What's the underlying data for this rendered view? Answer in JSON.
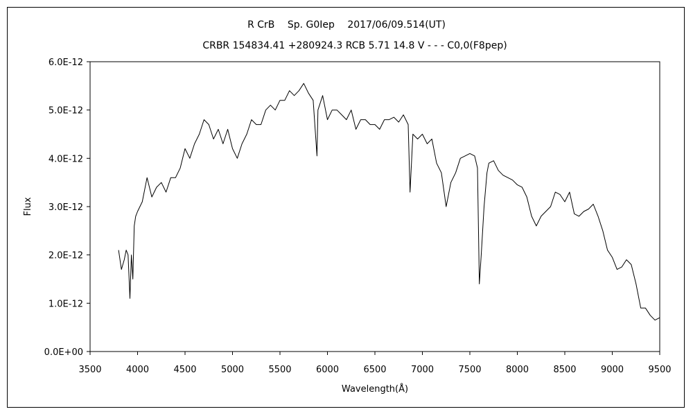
{
  "chart_data": {
    "type": "line",
    "title": "R CrB　 Sp. G0Iep　 2017/06/09.514(UT)",
    "subtitle": "CRBR 154834.41 +280924.3 RCB 5.71 14.8 V - - - C0,0(F8pep)",
    "xlabel": "Wavelength(Å)",
    "ylabel": "Flux",
    "xlim": [
      3500,
      9500
    ],
    "ylim": [
      0,
      6e-12
    ],
    "x_ticks": [
      3500,
      4000,
      4500,
      5000,
      5500,
      6000,
      6500,
      7000,
      7500,
      8000,
      8500,
      9000,
      9500
    ],
    "y_ticks": [
      "0.0E+00",
      "1.0E-12",
      "2.0E-12",
      "3.0E-12",
      "4.0E-12",
      "5.0E-12",
      "6.0E-12"
    ],
    "grid": false,
    "legend": "none",
    "line_color": "#000000",
    "series": [
      {
        "name": "",
        "x": [
          3800,
          3830,
          3860,
          3880,
          3900,
          3920,
          3935,
          3950,
          3965,
          3980,
          4000,
          4050,
          4100,
          4150,
          4200,
          4250,
          4300,
          4350,
          4400,
          4450,
          4500,
          4550,
          4600,
          4650,
          4700,
          4750,
          4800,
          4850,
          4900,
          4950,
          5000,
          5050,
          5100,
          5150,
          5200,
          5250,
          5300,
          5350,
          5400,
          5450,
          5500,
          5550,
          5600,
          5650,
          5700,
          5750,
          5800,
          5850,
          5890,
          5900,
          5950,
          6000,
          6050,
          6100,
          6150,
          6200,
          6250,
          6300,
          6350,
          6400,
          6450,
          6500,
          6550,
          6600,
          6650,
          6700,
          6750,
          6800,
          6850,
          6870,
          6900,
          6950,
          7000,
          7050,
          7100,
          7150,
          7200,
          7250,
          7300,
          7350,
          7400,
          7450,
          7500,
          7550,
          7580,
          7600,
          7620,
          7650,
          7680,
          7700,
          7750,
          7800,
          7850,
          7900,
          7950,
          8000,
          8050,
          8100,
          8150,
          8200,
          8250,
          8300,
          8350,
          8400,
          8450,
          8500,
          8550,
          8600,
          8650,
          8700,
          8750,
          8800,
          8850,
          8900,
          8950,
          9000,
          9050,
          9100,
          9150,
          9200,
          9250,
          9300,
          9350,
          9400,
          9450,
          9500
        ],
        "y": [
          2.1e-12,
          1.7e-12,
          1.9e-12,
          2.1e-12,
          2e-12,
          1.1e-12,
          2e-12,
          1.5e-12,
          2.6e-12,
          2.8e-12,
          2.9e-12,
          3.1e-12,
          3.6e-12,
          3.2e-12,
          3.4e-12,
          3.5e-12,
          3.3e-12,
          3.6e-12,
          3.6e-12,
          3.8e-12,
          4.2e-12,
          4e-12,
          4.3e-12,
          4.5e-12,
          4.8e-12,
          4.7e-12,
          4.4e-12,
          4.6e-12,
          4.3e-12,
          4.6e-12,
          4.2e-12,
          4e-12,
          4.3e-12,
          4.5e-12,
          4.8e-12,
          4.7e-12,
          4.7e-12,
          5e-12,
          5.1e-12,
          5e-12,
          5.2e-12,
          5.2e-12,
          5.4e-12,
          5.3e-12,
          5.4e-12,
          5.55e-12,
          5.35e-12,
          5.2e-12,
          4.05e-12,
          5e-12,
          5.3e-12,
          4.8e-12,
          5e-12,
          5e-12,
          4.9e-12,
          4.8e-12,
          5e-12,
          4.6e-12,
          4.8e-12,
          4.8e-12,
          4.7e-12,
          4.7e-12,
          4.6e-12,
          4.8e-12,
          4.8e-12,
          4.85e-12,
          4.75e-12,
          4.9e-12,
          4.7e-12,
          3.3e-12,
          4.5e-12,
          4.4e-12,
          4.5e-12,
          4.3e-12,
          4.4e-12,
          3.9e-12,
          3.7e-12,
          3e-12,
          3.5e-12,
          3.7e-12,
          4e-12,
          4.05e-12,
          4.1e-12,
          4.05e-12,
          3.8e-12,
          1.4e-12,
          2e-12,
          3e-12,
          3.7e-12,
          3.9e-12,
          3.95e-12,
          3.75e-12,
          3.65e-12,
          3.6e-12,
          3.55e-12,
          3.45e-12,
          3.4e-12,
          3.2e-12,
          2.8e-12,
          2.6e-12,
          2.8e-12,
          2.9e-12,
          3e-12,
          3.3e-12,
          3.25e-12,
          3.1e-12,
          3.3e-12,
          2.85e-12,
          2.8e-12,
          2.9e-12,
          2.95e-12,
          3.05e-12,
          2.8e-12,
          2.5e-12,
          2.1e-12,
          1.95e-12,
          1.7e-12,
          1.75e-12,
          1.9e-12,
          1.8e-12,
          1.4e-12,
          9e-13,
          9e-13,
          7.5e-13,
          6.5e-13,
          7e-13
        ]
      }
    ]
  }
}
